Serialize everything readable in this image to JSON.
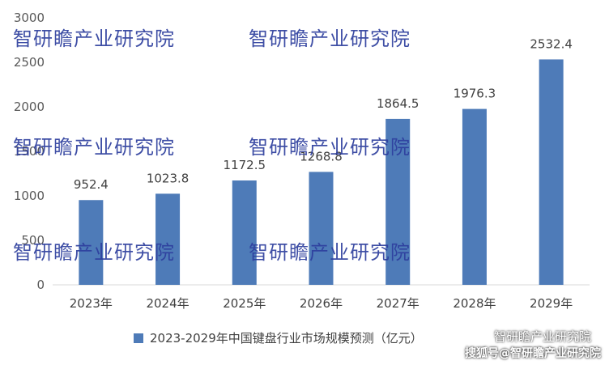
{
  "chart_data": {
    "type": "bar",
    "categories": [
      "2023年",
      "2024年",
      "2025年",
      "2026年",
      "2027年",
      "2028年",
      "2029年"
    ],
    "values": [
      952.4,
      1023.8,
      1172.5,
      1268.8,
      1864.5,
      1976.3,
      2532.4
    ],
    "data_labels": [
      "952.4",
      "1023.8",
      "1172.5",
      "1268.8",
      "1864.5",
      "1976.3",
      "2532.4"
    ],
    "y_ticks": [
      "0",
      "500",
      "1000",
      "1500",
      "2000",
      "2500",
      "3000"
    ],
    "ylim": [
      0,
      3000
    ],
    "grid": false,
    "legend": "bottom",
    "legend_label": "2023-2029年中国键盘行业市场规模预测（亿元）",
    "bar_color": "#4e7bb8"
  },
  "watermark_text": "智研瞻产业研究院",
  "credit_top": "智研瞻产业研究院",
  "credit_bottom": "搜狐号@智研瞻产业研究院"
}
